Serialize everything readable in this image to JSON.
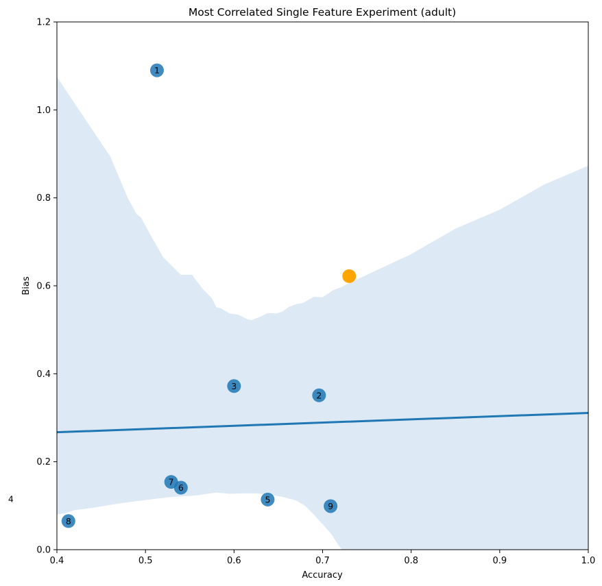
{
  "chart_data": {
    "type": "scatter",
    "title": "Most Correlated Single Feature Experiment (adult)",
    "xlabel": "Accuracy",
    "ylabel": "Bias",
    "xlim": [
      0.4,
      1.0
    ],
    "ylim": [
      0.0,
      1.2
    ],
    "xticks": [
      "0.4",
      "0.5",
      "0.6",
      "0.7",
      "0.8",
      "0.9",
      "1.0"
    ],
    "yticks": [
      "0.0",
      "0.2",
      "0.4",
      "0.6",
      "0.8",
      "1.0",
      "1.2"
    ],
    "grid": false,
    "colors": {
      "points": "#1f77b4",
      "highlight": "#ffa500",
      "band": "#c6dbef",
      "line": "#1f77b4"
    },
    "points": [
      {
        "label": "1",
        "x": 0.513,
        "y": 1.09
      },
      {
        "label": "2",
        "x": 0.696,
        "y": 0.351
      },
      {
        "label": "3",
        "x": 0.6,
        "y": 0.372
      },
      {
        "label": "5",
        "x": 0.638,
        "y": 0.114
      },
      {
        "label": "6",
        "x": 0.54,
        "y": 0.141
      },
      {
        "label": "7",
        "x": 0.529,
        "y": 0.154
      },
      {
        "label": "8",
        "x": 0.413,
        "y": 0.065
      },
      {
        "label": "9",
        "x": 0.709,
        "y": 0.099
      }
    ],
    "highlight_point": {
      "x": 0.73,
      "y": 0.622
    },
    "outside_label": {
      "label": "4",
      "x": 0.348,
      "y": 0.115
    },
    "regression_line": {
      "x": [
        0.4,
        1.0
      ],
      "y": [
        0.267,
        0.311
      ]
    },
    "confidence_band": {
      "upper": [
        [
          0.4,
          1.075
        ],
        [
          0.43,
          0.985
        ],
        [
          0.46,
          0.895
        ],
        [
          0.48,
          0.8
        ],
        [
          0.49,
          0.763
        ],
        [
          0.495,
          0.755
        ],
        [
          0.505,
          0.718
        ],
        [
          0.52,
          0.665
        ],
        [
          0.53,
          0.645
        ],
        [
          0.54,
          0.625
        ],
        [
          0.548,
          0.625
        ],
        [
          0.553,
          0.625
        ],
        [
          0.555,
          0.618
        ],
        [
          0.565,
          0.592
        ],
        [
          0.575,
          0.572
        ],
        [
          0.58,
          0.551
        ],
        [
          0.585,
          0.549
        ],
        [
          0.595,
          0.537
        ],
        [
          0.605,
          0.534
        ],
        [
          0.615,
          0.524
        ],
        [
          0.62,
          0.522
        ],
        [
          0.63,
          0.53
        ],
        [
          0.638,
          0.538
        ],
        [
          0.648,
          0.537
        ],
        [
          0.655,
          0.542
        ],
        [
          0.662,
          0.552
        ],
        [
          0.67,
          0.558
        ],
        [
          0.678,
          0.561
        ],
        [
          0.69,
          0.575
        ],
        [
          0.7,
          0.574
        ],
        [
          0.712,
          0.59
        ],
        [
          0.72,
          0.596
        ],
        [
          0.73,
          0.606
        ],
        [
          0.75,
          0.625
        ],
        [
          0.8,
          0.672
        ],
        [
          0.85,
          0.73
        ],
        [
          0.9,
          0.773
        ],
        [
          0.95,
          0.83
        ],
        [
          1.0,
          0.873
        ]
      ],
      "lower": [
        [
          0.4,
          0.08
        ],
        [
          0.41,
          0.083
        ],
        [
          0.42,
          0.09
        ],
        [
          0.44,
          0.095
        ],
        [
          0.47,
          0.105
        ],
        [
          0.5,
          0.113
        ],
        [
          0.53,
          0.12
        ],
        [
          0.555,
          0.123
        ],
        [
          0.57,
          0.127
        ],
        [
          0.58,
          0.13
        ],
        [
          0.595,
          0.127
        ],
        [
          0.61,
          0.128
        ],
        [
          0.625,
          0.128
        ],
        [
          0.64,
          0.125
        ],
        [
          0.655,
          0.12
        ],
        [
          0.67,
          0.112
        ],
        [
          0.68,
          0.1
        ],
        [
          0.69,
          0.08
        ],
        [
          0.7,
          0.058
        ],
        [
          0.71,
          0.035
        ],
        [
          0.718,
          0.01
        ],
        [
          0.722,
          0.0
        ]
      ]
    }
  }
}
